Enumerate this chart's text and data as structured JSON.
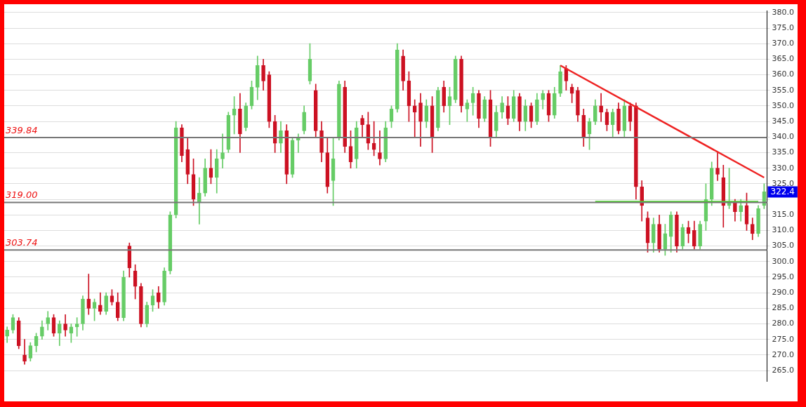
{
  "chart_data": {
    "type": "candlestick",
    "categories": [
      null,
      null,
      null,
      null,
      null,
      null,
      null,
      null,
      null,
      null,
      null,
      null,
      null,
      null,
      null,
      null,
      null,
      null,
      null,
      null,
      null,
      null,
      null,
      null,
      null,
      null,
      null,
      null,
      null,
      null,
      null,
      null,
      null,
      null,
      null,
      null,
      null,
      null,
      null,
      null,
      null,
      null,
      null,
      null,
      null,
      null,
      null,
      null,
      null,
      null,
      null,
      null,
      null,
      null,
      null,
      null,
      null,
      null,
      null,
      null,
      null,
      null,
      null,
      null,
      null,
      null,
      null,
      null,
      null,
      null,
      null,
      null,
      null,
      null,
      null,
      null,
      null,
      null,
      null,
      null,
      null,
      null,
      null,
      null,
      null,
      null,
      null,
      null,
      null,
      null,
      null,
      null,
      null,
      null,
      null,
      null,
      null,
      null,
      null,
      null,
      null,
      null,
      null,
      null,
      null,
      null,
      null,
      null,
      null,
      null,
      null,
      null,
      null,
      null,
      null,
      null,
      null,
      null,
      null,
      null,
      null,
      null,
      null,
      null,
      null,
      null,
      null,
      null,
      null,
      null,
      null
    ],
    "ohlc": [
      [
        276,
        279,
        274,
        278
      ],
      [
        278,
        283,
        277,
        282
      ],
      [
        281,
        282,
        272,
        273
      ],
      [
        270,
        275,
        267,
        268
      ],
      [
        269,
        274,
        268,
        273
      ],
      [
        273,
        277,
        271,
        276
      ],
      [
        276,
        281,
        275,
        279
      ],
      [
        280,
        284,
        278,
        282
      ],
      [
        282,
        283,
        276,
        277
      ],
      [
        277,
        281,
        273,
        280
      ],
      [
        280,
        283,
        276,
        278
      ],
      [
        277,
        280,
        274,
        279
      ],
      [
        279,
        282,
        276,
        280
      ],
      [
        280,
        289,
        278,
        288
      ],
      [
        288,
        296,
        283,
        285
      ],
      [
        285,
        288,
        281,
        287
      ],
      [
        286,
        290,
        283,
        284
      ],
      [
        284,
        290,
        283,
        289
      ],
      [
        289,
        291,
        286,
        287
      ],
      [
        287,
        290,
        281,
        282
      ],
      [
        282,
        297,
        281,
        295
      ],
      [
        305,
        306,
        295,
        298
      ],
      [
        297,
        299,
        288,
        292
      ],
      [
        292,
        293,
        279,
        280
      ],
      [
        280,
        287,
        279,
        286
      ],
      [
        286,
        291,
        284,
        289
      ],
      [
        290,
        292,
        285,
        287
      ],
      [
        287,
        298,
        286,
        297
      ],
      [
        297,
        316,
        296,
        315
      ],
      [
        315,
        345,
        314,
        343
      ],
      [
        343,
        344,
        332,
        334
      ],
      [
        336,
        340,
        325,
        328
      ],
      [
        328,
        333,
        318,
        320
      ],
      [
        319,
        327,
        312,
        322
      ],
      [
        322,
        333,
        321,
        330
      ],
      [
        330,
        336,
        325,
        327
      ],
      [
        327,
        336,
        322,
        333
      ],
      [
        333,
        341,
        330,
        335
      ],
      [
        336,
        348,
        335,
        347
      ],
      [
        347,
        353,
        341,
        349
      ],
      [
        349,
        354,
        335,
        341
      ],
      [
        343,
        351,
        342,
        350
      ],
      [
        350,
        358,
        349,
        356
      ],
      [
        356,
        366,
        352,
        363
      ],
      [
        363,
        365,
        355,
        358
      ],
      [
        360,
        361,
        343,
        345
      ],
      [
        345,
        347,
        335,
        338
      ],
      [
        338,
        345,
        335,
        342
      ],
      [
        342,
        344,
        325,
        328
      ],
      [
        328,
        340,
        327,
        339
      ],
      [
        339,
        341,
        335,
        340
      ],
      [
        342,
        350,
        341,
        348
      ],
      [
        358,
        370,
        357,
        365
      ],
      [
        355,
        357,
        340,
        342
      ],
      [
        342,
        345,
        332,
        335
      ],
      [
        335,
        340,
        322,
        324
      ],
      [
        326,
        340,
        318,
        333
      ],
      [
        340,
        358,
        339,
        357
      ],
      [
        356,
        358,
        335,
        337
      ],
      [
        337,
        342,
        330,
        332
      ],
      [
        333,
        345,
        330,
        343
      ],
      [
        346,
        347,
        340,
        344
      ],
      [
        344,
        348,
        336,
        338
      ],
      [
        338,
        345,
        334,
        336
      ],
      [
        335,
        342,
        331,
        333
      ],
      [
        333,
        345,
        332,
        343
      ],
      [
        345,
        350,
        343,
        349
      ],
      [
        349,
        370,
        348,
        368
      ],
      [
        366,
        368,
        355,
        358
      ],
      [
        358,
        361,
        345,
        350
      ],
      [
        350,
        352,
        340,
        348
      ],
      [
        351,
        354,
        337,
        345
      ],
      [
        345,
        352,
        343,
        350
      ],
      [
        350,
        353,
        335,
        340
      ],
      [
        343,
        356,
        342,
        355
      ],
      [
        356,
        358,
        348,
        350
      ],
      [
        350,
        356,
        344,
        353
      ],
      [
        352,
        366,
        351,
        365
      ],
      [
        365,
        366,
        348,
        350
      ],
      [
        349,
        352,
        345,
        351
      ],
      [
        351,
        356,
        347,
        354
      ],
      [
        354,
        355,
        343,
        346
      ],
      [
        346,
        353,
        345,
        352
      ],
      [
        352,
        355,
        337,
        340
      ],
      [
        342,
        350,
        340,
        348
      ],
      [
        348,
        353,
        346,
        351
      ],
      [
        350,
        353,
        344,
        346
      ],
      [
        346,
        355,
        345,
        353
      ],
      [
        353,
        354,
        342,
        345
      ],
      [
        345,
        352,
        342,
        350
      ],
      [
        350,
        351,
        343,
        345
      ],
      [
        345,
        354,
        344,
        352
      ],
      [
        352,
        355,
        349,
        354
      ],
      [
        354,
        355,
        345,
        347
      ],
      [
        347,
        356,
        346,
        354
      ],
      [
        354,
        363,
        353,
        361
      ],
      [
        362,
        363,
        355,
        358
      ],
      [
        356,
        357,
        351,
        354
      ],
      [
        355,
        356,
        345,
        347
      ],
      [
        347,
        349,
        337,
        340
      ],
      [
        341,
        346,
        336,
        345
      ],
      [
        345,
        352,
        344,
        350
      ],
      [
        350,
        354,
        345,
        348
      ],
      [
        348,
        349,
        342,
        344
      ],
      [
        344,
        349,
        340,
        348
      ],
      [
        349,
        351,
        341,
        342
      ],
      [
        342,
        352,
        340,
        350
      ],
      [
        350,
        351,
        342,
        345
      ],
      [
        350,
        351,
        320,
        324
      ],
      [
        324,
        326,
        313,
        318
      ],
      [
        314,
        316,
        303,
        306
      ],
      [
        306,
        314,
        303,
        312
      ],
      [
        312,
        315,
        303,
        304
      ],
      [
        304,
        312,
        302,
        309
      ],
      [
        308,
        316,
        303,
        315
      ],
      [
        315,
        316,
        303,
        305
      ],
      [
        305,
        312,
        304,
        311
      ],
      [
        311,
        313,
        306,
        309
      ],
      [
        310,
        313,
        304,
        305
      ],
      [
        305,
        313,
        304,
        312
      ],
      [
        313,
        325,
        310,
        320
      ],
      [
        320,
        332,
        318,
        330
      ],
      [
        330,
        335,
        326,
        328
      ],
      [
        327,
        331,
        311,
        318
      ],
      [
        318,
        330,
        317,
        319
      ],
      [
        319,
        320,
        313,
        316
      ],
      [
        316,
        320,
        313,
        318
      ],
      [
        318,
        322,
        310,
        312
      ],
      [
        312,
        314,
        307,
        309
      ],
      [
        309,
        318,
        308,
        317
      ],
      [
        318,
        325,
        317,
        322.4
      ]
    ],
    "colors": [
      "#66cc66",
      "#66cc66",
      "#cc1122",
      "#cc1122",
      "#66cc66",
      "#66cc66",
      "#66cc66",
      "#66cc66",
      "#cc1122",
      "#66cc66",
      "#cc1122",
      "#66cc66",
      "#66cc66",
      "#66cc66",
      "#cc1122",
      "#66cc66",
      "#cc1122",
      "#66cc66",
      "#cc1122",
      "#cc1122",
      "#66cc66",
      "#cc1122",
      "#cc1122",
      "#cc1122",
      "#66cc66",
      "#66cc66",
      "#cc1122",
      "#66cc66",
      "#66cc66",
      "#66cc66",
      "#cc1122",
      "#cc1122",
      "#cc1122",
      "#66cc66",
      "#66cc66",
      "#cc1122",
      "#66cc66",
      "#66cc66",
      "#66cc66",
      "#66cc66",
      "#cc1122",
      "#66cc66",
      "#66cc66",
      "#66cc66",
      "#cc1122",
      "#cc1122",
      "#cc1122",
      "#66cc66",
      "#cc1122",
      "#66cc66",
      "#66cc66",
      "#66cc66",
      "#66cc66",
      "#cc1122",
      "#cc1122",
      "#cc1122",
      "#66cc66",
      "#66cc66",
      "#cc1122",
      "#cc1122",
      "#66cc66",
      "#cc1122",
      "#cc1122",
      "#cc1122",
      "#cc1122",
      "#66cc66",
      "#66cc66",
      "#66cc66",
      "#cc1122",
      "#cc1122",
      "#cc1122",
      "#cc1122",
      "#66cc66",
      "#cc1122",
      "#66cc66",
      "#cc1122",
      "#66cc66",
      "#66cc66",
      "#cc1122",
      "#66cc66",
      "#66cc66",
      "#cc1122",
      "#66cc66",
      "#cc1122",
      "#66cc66",
      "#66cc66",
      "#cc1122",
      "#66cc66",
      "#cc1122",
      "#66cc66",
      "#cc1122",
      "#66cc66",
      "#66cc66",
      "#cc1122",
      "#66cc66",
      "#66cc66",
      "#cc1122",
      "#cc1122",
      "#cc1122",
      "#cc1122",
      "#66cc66",
      "#66cc66",
      "#cc1122",
      "#cc1122",
      "#66cc66",
      "#cc1122",
      "#66cc66",
      "#cc1122",
      "#cc1122",
      "#cc1122",
      "#cc1122",
      "#66cc66",
      "#cc1122",
      "#66cc66",
      "#66cc66",
      "#cc1122",
      "#66cc66",
      "#cc1122",
      "#cc1122",
      "#66cc66",
      "#66cc66",
      "#66cc66",
      "#cc1122",
      "#cc1122",
      "#66cc66",
      "#cc1122",
      "#66cc66",
      "#cc1122",
      "#cc1122",
      "#66cc66",
      "#66cc66"
    ],
    "series": [
      {
        "type": "line",
        "color": "#ee2222",
        "values": [
          null,
          null,
          null,
          null,
          null,
          null,
          null,
          null,
          null,
          null,
          null,
          null,
          null,
          null,
          null,
          null,
          null,
          null,
          null,
          null,
          null,
          null,
          null,
          null,
          null,
          null,
          null,
          null,
          null,
          null,
          null,
          null,
          null,
          null,
          null,
          null,
          null,
          null,
          null,
          null,
          null,
          null,
          null,
          null,
          null,
          null,
          null,
          null,
          null,
          null,
          null,
          null,
          null,
          null,
          null,
          null,
          null,
          null,
          null,
          null,
          null,
          null,
          null,
          null,
          null,
          null,
          null,
          null,
          null,
          null,
          null,
          null,
          null,
          null,
          null,
          null,
          null,
          null,
          null,
          null,
          null,
          null,
          null,
          null,
          null,
          null,
          null,
          null,
          null,
          null,
          null,
          null,
          null,
          null,
          null,
          363,
          null,
          null,
          null,
          null,
          null,
          null,
          null,
          null,
          null,
          null,
          null,
          null,
          null,
          null,
          null,
          null,
          null,
          null,
          null,
          null,
          null,
          null,
          null,
          null,
          null,
          null,
          null,
          null,
          null,
          null,
          null,
          null,
          null,
          null,
          327
        ]
      },
      {
        "type": "line",
        "color": "#44dd22",
        "values": [
          null,
          null,
          null,
          null,
          null,
          null,
          null,
          null,
          null,
          null,
          null,
          null,
          null,
          null,
          null,
          null,
          null,
          null,
          null,
          null,
          null,
          null,
          null,
          null,
          null,
          null,
          null,
          null,
          null,
          null,
          null,
          null,
          null,
          null,
          null,
          null,
          null,
          null,
          null,
          null,
          null,
          null,
          null,
          null,
          null,
          null,
          null,
          null,
          null,
          null,
          null,
          null,
          null,
          null,
          null,
          null,
          null,
          null,
          null,
          null,
          null,
          null,
          null,
          null,
          null,
          null,
          null,
          null,
          null,
          null,
          null,
          null,
          null,
          null,
          null,
          null,
          null,
          null,
          null,
          null,
          null,
          null,
          null,
          null,
          null,
          null,
          null,
          null,
          null,
          null,
          null,
          null,
          null,
          null,
          null,
          null,
          null,
          null,
          null,
          null,
          null,
          319.2,
          null,
          null,
          null,
          null,
          null,
          null,
          null,
          null,
          null,
          null,
          null,
          null,
          null,
          null,
          null,
          null,
          null,
          null,
          null,
          null,
          null,
          null,
          null,
          null,
          null,
          null,
          null,
          319.2,
          null
        ]
      }
    ],
    "ylim": [
      261.5,
      380.5
    ],
    "yticks": [
      {
        "value": 265,
        "label": "265.0"
      },
      {
        "value": 270,
        "label": "270.0"
      },
      {
        "value": 275,
        "label": "275.0"
      },
      {
        "value": 280,
        "label": "280.0"
      },
      {
        "value": 285,
        "label": "285.0"
      },
      {
        "value": 290,
        "label": "290.0"
      },
      {
        "value": 295,
        "label": "295.0"
      },
      {
        "value": 300,
        "label": "300.0"
      },
      {
        "value": 305,
        "label": "305.0"
      },
      {
        "value": 310,
        "label": "310.0"
      },
      {
        "value": 315,
        "label": "315.0"
      },
      {
        "value": 320,
        "label": null
      },
      {
        "value": 325,
        "label": "325.0"
      },
      {
        "value": 330,
        "label": "330.0"
      },
      {
        "value": 335,
        "label": "335.0"
      },
      {
        "value": 340,
        "label": "340.0"
      },
      {
        "value": 345,
        "label": "345.0"
      },
      {
        "value": 350,
        "label": "350.0"
      },
      {
        "value": 355,
        "label": "355.0"
      },
      {
        "value": 360,
        "label": "360.0"
      },
      {
        "value": 365,
        "label": "365.0"
      },
      {
        "value": 370,
        "label": "370.0"
      },
      {
        "value": 375,
        "label": "375.0"
      },
      {
        "value": 380,
        "label": "380.0"
      }
    ],
    "grid": "y",
    "ref_lines": [
      {
        "axis": "y",
        "value": 339.84,
        "label": "339.84",
        "color": "#777777"
      },
      {
        "axis": "y",
        "value": 319.0,
        "label": "319.00",
        "color": "#777777"
      },
      {
        "axis": "y",
        "value": 303.74,
        "label": "303.74",
        "color": "#777777"
      }
    ],
    "annotations": [
      {
        "text": "322.4",
        "y": 322.4
      }
    ]
  }
}
